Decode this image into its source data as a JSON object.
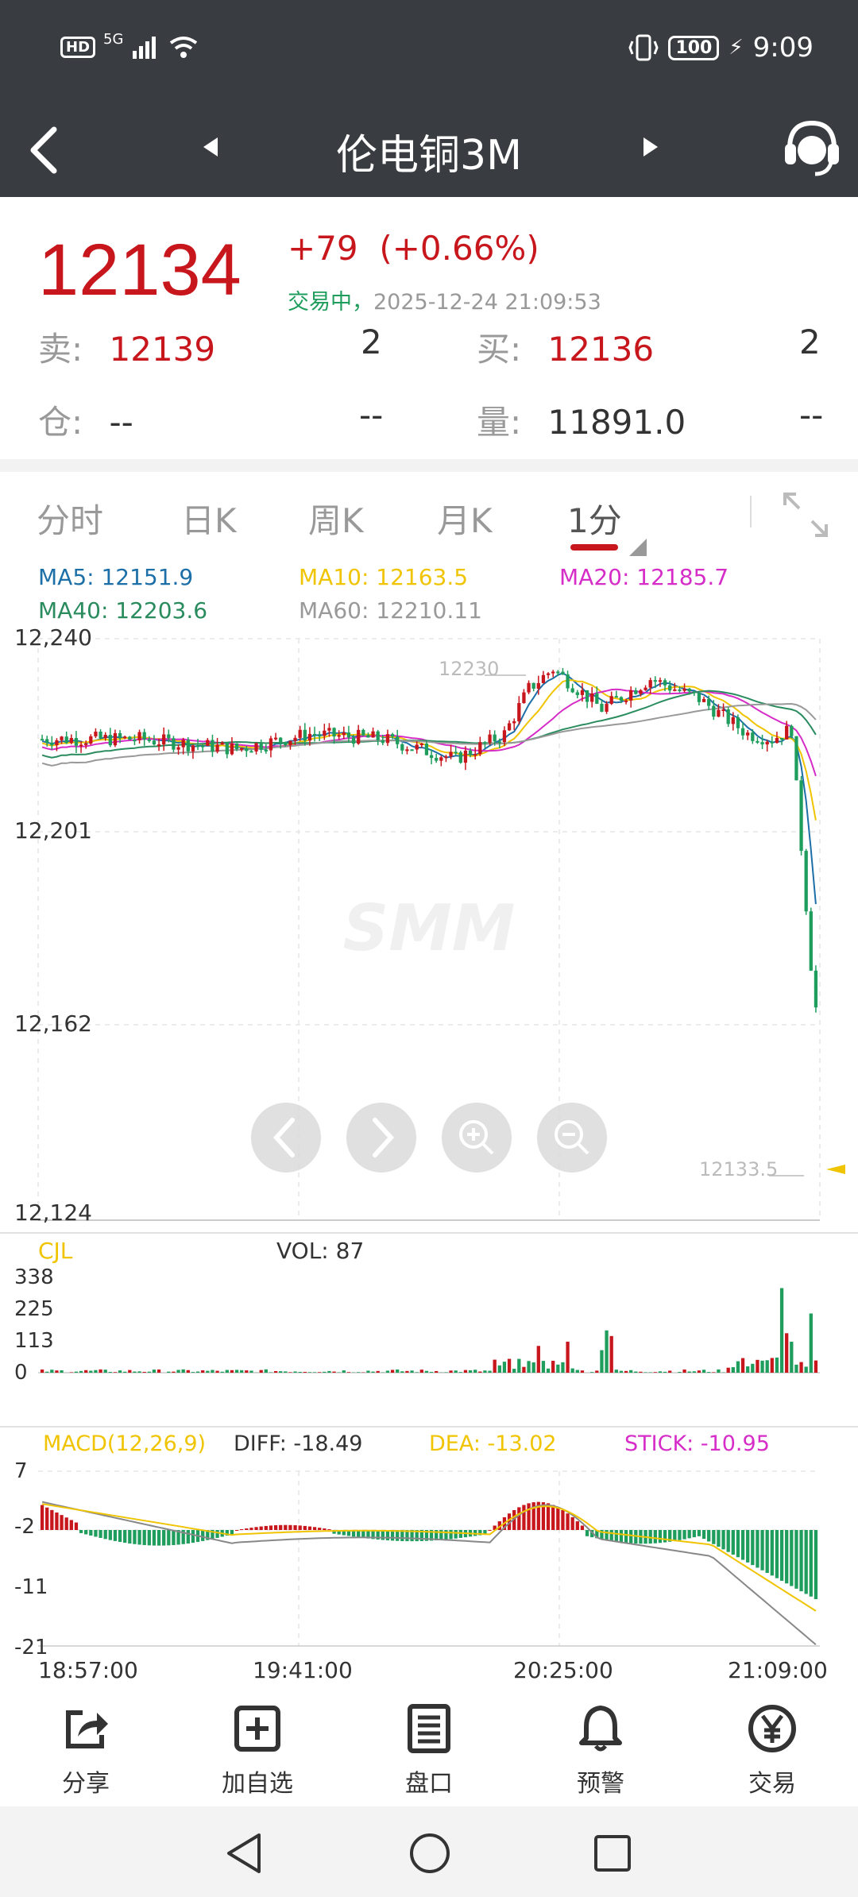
{
  "status_bar": {
    "network_badge": "HD",
    "signal": "5G",
    "battery": "100",
    "time": "9:09"
  },
  "header": {
    "title": "伦电铜3M"
  },
  "quote": {
    "price": "12134",
    "change": "+79",
    "change_pct": "(+0.66%)",
    "state": "交易中，",
    "datetime": "2025-12-24 21:09:53",
    "sell_label": "卖:",
    "sell_price": "12139",
    "sell_qty": "2",
    "buy_label": "买:",
    "buy_price": "12136",
    "buy_qty": "2",
    "oi_label": "仓:",
    "oi_value": "--",
    "oi_change": "--",
    "vol_label": "量:",
    "vol_value": "11891.0",
    "vol_change": "--"
  },
  "tabs": [
    "分时",
    "日K",
    "周K",
    "月K",
    "1分"
  ],
  "ma": {
    "ma5": "MA5: 12151.9",
    "ma10": "MA10: 12163.5",
    "ma20": "MA20: 12185.7",
    "ma40": "MA40: 12203.6",
    "ma60": "MA60: 12210.11"
  },
  "colors": {
    "up": "#c8161d",
    "down": "#1e9d5c",
    "ma5": "#1d6fa8",
    "ma10": "#f0c400",
    "ma20": "#d62cc8",
    "ma40": "#2a8c5e",
    "ma60": "#999999"
  },
  "chart_data": [
    {
      "type": "candlestick",
      "ylabel_ticks": [
        "12,240",
        "12,201",
        "12,162",
        "12,124"
      ],
      "ylim": [
        12124,
        12240
      ],
      "annotations": [
        "12230",
        "12133.5"
      ],
      "watermark": "SMM"
    },
    {
      "type": "bar",
      "title": "CJL",
      "label": "VOL: 87",
      "ylabel_ticks": [
        "338",
        "225",
        "113",
        "0"
      ],
      "ylim": [
        0,
        338
      ]
    },
    {
      "type": "bar",
      "title": "MACD(12,26,9)",
      "diff": "DIFF: -18.49",
      "dea": "DEA: -13.02",
      "stick": "STICK: -10.95",
      "ylabel_ticks": [
        "7",
        "-2",
        "-11",
        "-21"
      ],
      "ylim": [
        -21,
        7
      ],
      "x_ticks": [
        "18:57:00",
        "19:41:00",
        "20:25:00",
        "21:09:00"
      ]
    }
  ],
  "toolbar": [
    {
      "label": "分享",
      "icon": "share-icon"
    },
    {
      "label": "加自选",
      "icon": "add-box-icon"
    },
    {
      "label": "盘口",
      "icon": "list-icon"
    },
    {
      "label": "预警",
      "icon": "bell-icon"
    },
    {
      "label": "交易",
      "icon": "yen-icon"
    }
  ]
}
